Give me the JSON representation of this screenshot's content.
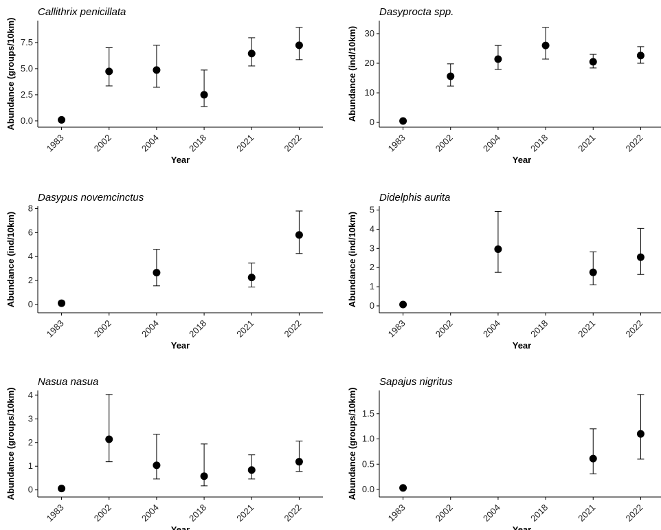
{
  "chart_data": [
    {
      "type": "errorpoint",
      "title": "Callithrix penicillata",
      "ylabel": "Abundance (groups/10km)",
      "xlabel": "Year",
      "categories": [
        "1983",
        "2002",
        "2004",
        "2018",
        "2021",
        "2022"
      ],
      "values": [
        0.1,
        4.74,
        4.87,
        2.5,
        6.45,
        7.24
      ],
      "lower": [
        null,
        3.35,
        3.22,
        1.38,
        5.26,
        5.86
      ],
      "upper": [
        null,
        7.0,
        7.24,
        4.87,
        7.96,
        8.95
      ],
      "ylim": [
        -0.6,
        9.6
      ],
      "yticks": [
        {
          "value": 0,
          "label": "0.0"
        },
        2.5,
        {
          "value": 5,
          "label": "5.0"
        },
        7.5
      ],
      "color": "#000000"
    },
    {
      "type": "errorpoint",
      "title": "Dasyprocta spp.",
      "ylabel": "Abundance (ind/10km)",
      "xlabel": "Year",
      "categories": [
        "1983",
        "2002",
        "2004",
        "2018",
        "2021",
        "2022"
      ],
      "values": [
        0.5,
        15.6,
        21.4,
        26,
        20.5,
        22.6
      ],
      "lower": [
        null,
        12.3,
        17.9,
        21.4,
        18.4,
        20
      ],
      "upper": [
        null,
        19.8,
        26,
        32.1,
        23,
        25.6
      ],
      "ylim": [
        -1.6,
        34.4
      ],
      "yticks": [
        0,
        10,
        20,
        30
      ],
      "color": "#000000"
    },
    {
      "type": "errorpoint",
      "title": "Dasypus novemcinctus",
      "ylabel": "Abundance (ind/10km)",
      "xlabel": "Year",
      "categories": [
        "1983",
        "2002",
        "2004",
        "2018",
        "2021",
        "2022"
      ],
      "values": [
        0.1,
        null,
        2.65,
        null,
        2.25,
        5.8
      ],
      "lower": [
        null,
        null,
        1.55,
        null,
        1.45,
        4.25
      ],
      "upper": [
        null,
        null,
        4.6,
        null,
        3.45,
        7.8
      ],
      "ylim": [
        -0.7,
        8.2
      ],
      "yticks": [
        0,
        2,
        4,
        6,
        8
      ],
      "color": "#000000"
    },
    {
      "type": "errorpoint",
      "title": "Didelphis aurita",
      "ylabel": "Abundance (ind/10km)",
      "xlabel": "Year",
      "categories": [
        "1983",
        "2002",
        "2004",
        "2018",
        "2021",
        "2022"
      ],
      "values": [
        0.07,
        null,
        2.96,
        null,
        1.75,
        2.54
      ],
      "lower": [
        null,
        null,
        1.75,
        null,
        1.1,
        1.64
      ],
      "upper": [
        null,
        null,
        4.93,
        null,
        2.82,
        4.04
      ],
      "ylim": [
        -0.36,
        5.2
      ],
      "yticks": [
        0,
        1,
        2,
        3,
        4,
        5
      ],
      "color": "#000000"
    },
    {
      "type": "errorpoint",
      "title": "Nasua nasua",
      "ylabel": "Abundance (groups/10km)",
      "xlabel": "Year",
      "categories": [
        "1983",
        "2002",
        "2004",
        "2018",
        "2021",
        "2022"
      ],
      "values": [
        0.06,
        2.14,
        1.04,
        0.58,
        0.84,
        1.19
      ],
      "lower": [
        null,
        1.19,
        0.46,
        0.17,
        0.46,
        0.78
      ],
      "upper": [
        null,
        4.03,
        2.35,
        1.94,
        1.48,
        2.06
      ],
      "ylim": [
        -0.3,
        4.2
      ],
      "yticks": [
        0,
        1,
        2,
        3,
        4
      ],
      "color": "#000000"
    },
    {
      "type": "errorpoint",
      "title": "Sapajus nigritus",
      "ylabel": "Abundance (groups/10km)",
      "xlabel": "Year",
      "categories": [
        "1983",
        "2002",
        "2004",
        "2018",
        "2021",
        "2022"
      ],
      "values": [
        0.03,
        null,
        null,
        null,
        0.61,
        1.1
      ],
      "lower": [
        null,
        null,
        null,
        null,
        0.31,
        0.6
      ],
      "upper": [
        null,
        null,
        null,
        null,
        1.2,
        1.88
      ],
      "ylim": [
        -0.15,
        1.96
      ],
      "yticks": [
        {
          "value": 0,
          "label": "0.0"
        },
        0.5,
        {
          "value": 1,
          "label": "1.0"
        },
        1.5
      ],
      "color": "#000000"
    }
  ]
}
